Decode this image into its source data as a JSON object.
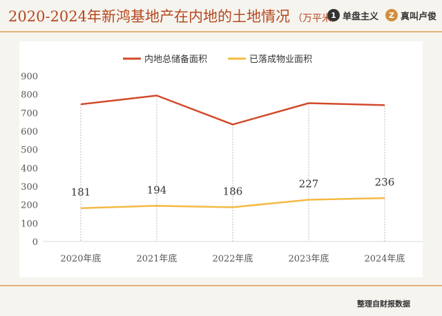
{
  "header": {
    "title": "2020-2024年新鸿基地产在内地的土地情况",
    "unit": "（万平米）",
    "brand1": {
      "icon": "1",
      "name": "单盘主义"
    },
    "brand2": {
      "icon": "Z",
      "name": "真叫卢俊"
    }
  },
  "footer": {
    "source": "整理自财报数据"
  },
  "colors": {
    "series1": "#d2492a",
    "series2": "#f4b942",
    "accent": "#b5471e"
  },
  "chart_data": {
    "type": "line",
    "categories": [
      "2020年底",
      "2021年底",
      "2022年底",
      "2023年底",
      "2024年底"
    ],
    "series": [
      {
        "name": "内地总储备面积",
        "values": [
          746,
          793,
          636,
          752,
          741
        ]
      },
      {
        "name": "已落成物业面积",
        "values": [
          181,
          194,
          186,
          227,
          236
        ]
      }
    ],
    "ylim": [
      0,
      900
    ],
    "yticks": [
      0,
      100,
      200,
      300,
      400,
      500,
      600,
      700,
      800,
      900
    ],
    "legend": "top-center",
    "data_labels_series": 1
  }
}
